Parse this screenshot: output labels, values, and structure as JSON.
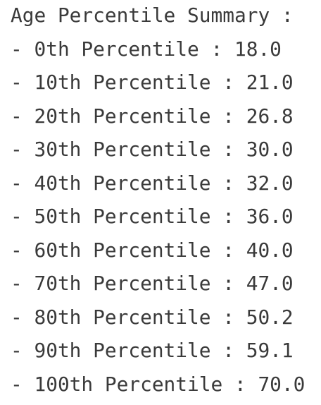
{
  "title": "Age Percentile Summary :",
  "lines": [
    "- 0th Percentile : 18.0",
    "- 10th Percentile : 21.0",
    "- 20th Percentile : 26.8",
    "- 30th Percentile : 30.0",
    "- 40th Percentile : 32.0",
    "- 50th Percentile : 36.0",
    "- 60th Percentile : 40.0",
    "- 70th Percentile : 47.0",
    "- 80th Percentile : 50.2",
    "- 90th Percentile : 59.1",
    "- 100th Percentile : 70.0"
  ]
}
